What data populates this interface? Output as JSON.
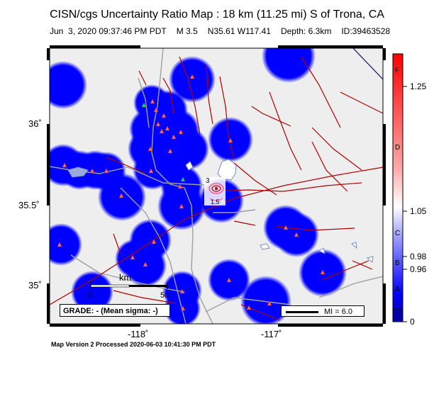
{
  "title": "CISN/cgs Uncertainty Ratio Map : 18 km (11.25 mi) S of Trona, CA",
  "event": {
    "datetime": "Jun  3, 2020 09:37:46 PM PDT",
    "magnitude": "M 3.5",
    "location": "N35.61 W117.41",
    "depth": "Depth: 6.3km",
    "id": "ID:39463528"
  },
  "axes": {
    "lat_labels": [
      "36˚",
      "35.5˚",
      "35˚"
    ],
    "lon_labels": [
      "-118˚",
      "-117˚"
    ]
  },
  "map": {
    "background_color": "#eeeeee",
    "uncertainty_color": "#0000ff",
    "fault_color": "#b00000",
    "road_color": "#a0a0a0",
    "contour_labels": [
      "3",
      "1.5"
    ]
  },
  "scale_bar": {
    "unit": "km",
    "zero": "0",
    "max": "50"
  },
  "grade_box": "GRADE: - (Mean sigma: -)",
  "mi_legend": "MI = 6.0",
  "colorbar": {
    "grade_letters": [
      "F",
      "D",
      "C",
      "B",
      "A"
    ],
    "ticks": [
      "1.25",
      "1.05",
      "0.98",
      "0.96",
      "0"
    ]
  },
  "footer": "Map Version 2 Processed 2020-06-03 10:41:30 PM PDT"
}
